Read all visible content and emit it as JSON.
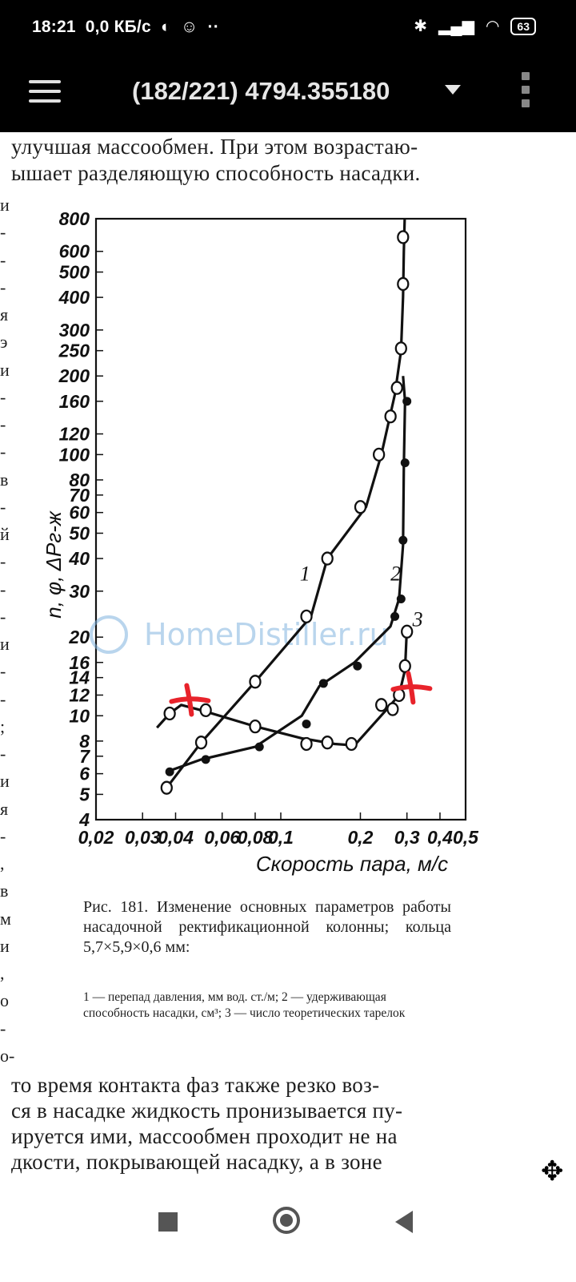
{
  "status_bar": {
    "time": "18:21",
    "network_speed": "0,0 КБ/с",
    "battery": "63",
    "icons": [
      "bluetooth-icon",
      "signal-icon",
      "wifi-icon",
      "battery-icon"
    ]
  },
  "app_bar": {
    "title": "(182/221) 4794.355180",
    "icons": [
      "menu-icon",
      "dropdown-icon",
      "overflow-icon"
    ]
  },
  "page": {
    "top_lines": [
      "улучшая массообмен. При этом возрастаю-",
      "ышает разделяющую способность насадки."
    ],
    "margin_chars": [
      "и",
      "-",
      "-",
      "-",
      "я",
      "э",
      "и",
      "-",
      "-",
      "-",
      "в",
      "-",
      "й",
      "-",
      "-",
      "-",
      "и",
      "-",
      "-",
      ";",
      "-",
      "и",
      "я",
      "-",
      ",",
      "в",
      "м",
      "и",
      ",",
      "о",
      "-",
      "о-"
    ],
    "caption": "Рис. 181. Изменение основных параметров работы насадочной ректификационной колонны; кольца 5,7×5,9×0,6 мм:",
    "legend": "1 — перепад давления, мм вод. ст./м; 2 — удерживающая способность насадки, см³; 3 — число теоретических тарелок",
    "bottom_lines": [
      "то время контакта фаз также резко воз-",
      "ся в насадке жидкость пронизывается пу-",
      "ируется ими, массообмен проходит не на",
      "дкости, покрывающей насадку, а в зоне"
    ],
    "watermark": "HomeDistiller.ru"
  },
  "chart_data": {
    "type": "line",
    "xlabel": "Скорость пара, м/с",
    "ylabel": "n, φ, ΔPг-ж",
    "x_scale": "log",
    "y_scale": "log",
    "xlim": [
      0.02,
      0.5
    ],
    "ylim": [
      4,
      800
    ],
    "x_ticks": [
      0.02,
      0.03,
      0.04,
      0.06,
      0.08,
      0.1,
      0.2,
      0.3,
      0.4,
      0.5
    ],
    "x_tick_labels": [
      "0,02",
      "0,03",
      "0,04",
      "0,06",
      "0,08",
      "0,1",
      "0,2",
      "0,3",
      "0,4",
      "0,5"
    ],
    "y_ticks": [
      4,
      5,
      6,
      7,
      8,
      10,
      12,
      14,
      16,
      20,
      30,
      40,
      50,
      60,
      70,
      80,
      100,
      120,
      160,
      200,
      250,
      300,
      400,
      500,
      600,
      800
    ],
    "y_tick_labels": [
      "4",
      "5",
      "6",
      "7",
      "8",
      "10",
      "12",
      "14",
      "16",
      "20",
      "30",
      "40",
      "50",
      "60",
      "70",
      "80",
      "100",
      "120",
      "160",
      "200",
      "250",
      "300",
      "400",
      "500",
      "600",
      "800"
    ],
    "series": [
      {
        "name": "1",
        "marker": "open",
        "line": [
          [
            0.037,
            5.3
          ],
          [
            0.05,
            7.9
          ],
          [
            0.08,
            13.5
          ],
          [
            0.13,
            24
          ],
          [
            0.15,
            40
          ],
          [
            0.21,
            63
          ],
          [
            0.24,
            100
          ],
          [
            0.27,
            170
          ],
          [
            0.285,
            250
          ],
          [
            0.29,
            400
          ],
          [
            0.292,
            600
          ],
          [
            0.295,
            900
          ]
        ],
        "markers": [
          [
            0.037,
            5.3
          ],
          [
            0.05,
            7.9
          ],
          [
            0.08,
            13.5
          ],
          [
            0.125,
            24
          ],
          [
            0.15,
            40
          ],
          [
            0.2,
            63
          ],
          [
            0.235,
            100
          ],
          [
            0.26,
            140
          ],
          [
            0.275,
            180
          ],
          [
            0.285,
            255
          ],
          [
            0.29,
            450
          ],
          [
            0.29,
            680
          ]
        ]
      },
      {
        "name": "2",
        "marker": "filled",
        "line": [
          [
            0.037,
            6.1
          ],
          [
            0.05,
            6.8
          ],
          [
            0.08,
            7.6
          ],
          [
            0.12,
            10
          ],
          [
            0.14,
            13
          ],
          [
            0.19,
            16
          ],
          [
            0.26,
            22
          ],
          [
            0.28,
            28
          ],
          [
            0.29,
            45
          ],
          [
            0.292,
            90
          ],
          [
            0.295,
            160
          ],
          [
            0.29,
            200
          ]
        ],
        "markers": [
          [
            0.038,
            6.1
          ],
          [
            0.052,
            6.8
          ],
          [
            0.083,
            7.6
          ],
          [
            0.125,
            9.3
          ],
          [
            0.145,
            13.3
          ],
          [
            0.195,
            15.5
          ],
          [
            0.27,
            24
          ],
          [
            0.285,
            28
          ],
          [
            0.29,
            47
          ],
          [
            0.295,
            93
          ],
          [
            0.3,
            160
          ]
        ]
      },
      {
        "name": "3",
        "marker": "open",
        "line": [
          [
            0.034,
            9
          ],
          [
            0.038,
            10.2
          ],
          [
            0.042,
            11
          ],
          [
            0.05,
            10.5
          ],
          [
            0.08,
            9.1
          ],
          [
            0.12,
            8.2
          ],
          [
            0.16,
            7.8
          ],
          [
            0.19,
            7.7
          ],
          [
            0.25,
            10.5
          ],
          [
            0.28,
            12
          ],
          [
            0.295,
            15
          ],
          [
            0.3,
            22
          ]
        ],
        "markers": [
          [
            0.038,
            10.2
          ],
          [
            0.052,
            10.5
          ],
          [
            0.08,
            9.1
          ],
          [
            0.125,
            7.8
          ],
          [
            0.15,
            7.9
          ],
          [
            0.185,
            7.8
          ],
          [
            0.24,
            11
          ],
          [
            0.265,
            10.6
          ],
          [
            0.28,
            12
          ],
          [
            0.295,
            15.5
          ],
          [
            0.3,
            21
          ]
        ]
      }
    ],
    "series_labels": [
      {
        "text": "1",
        "x": 0.118,
        "y": 33
      },
      {
        "text": "2",
        "x": 0.26,
        "y": 33
      },
      {
        "text": "3",
        "x": 0.315,
        "y": 22
      }
    ],
    "annotations": [
      {
        "type": "handwritten-cross",
        "color": "#e8232b",
        "x": 0.045,
        "y": 11.5
      },
      {
        "type": "handwritten-cross",
        "color": "#e8232b",
        "x": 0.31,
        "y": 12.8
      }
    ]
  }
}
